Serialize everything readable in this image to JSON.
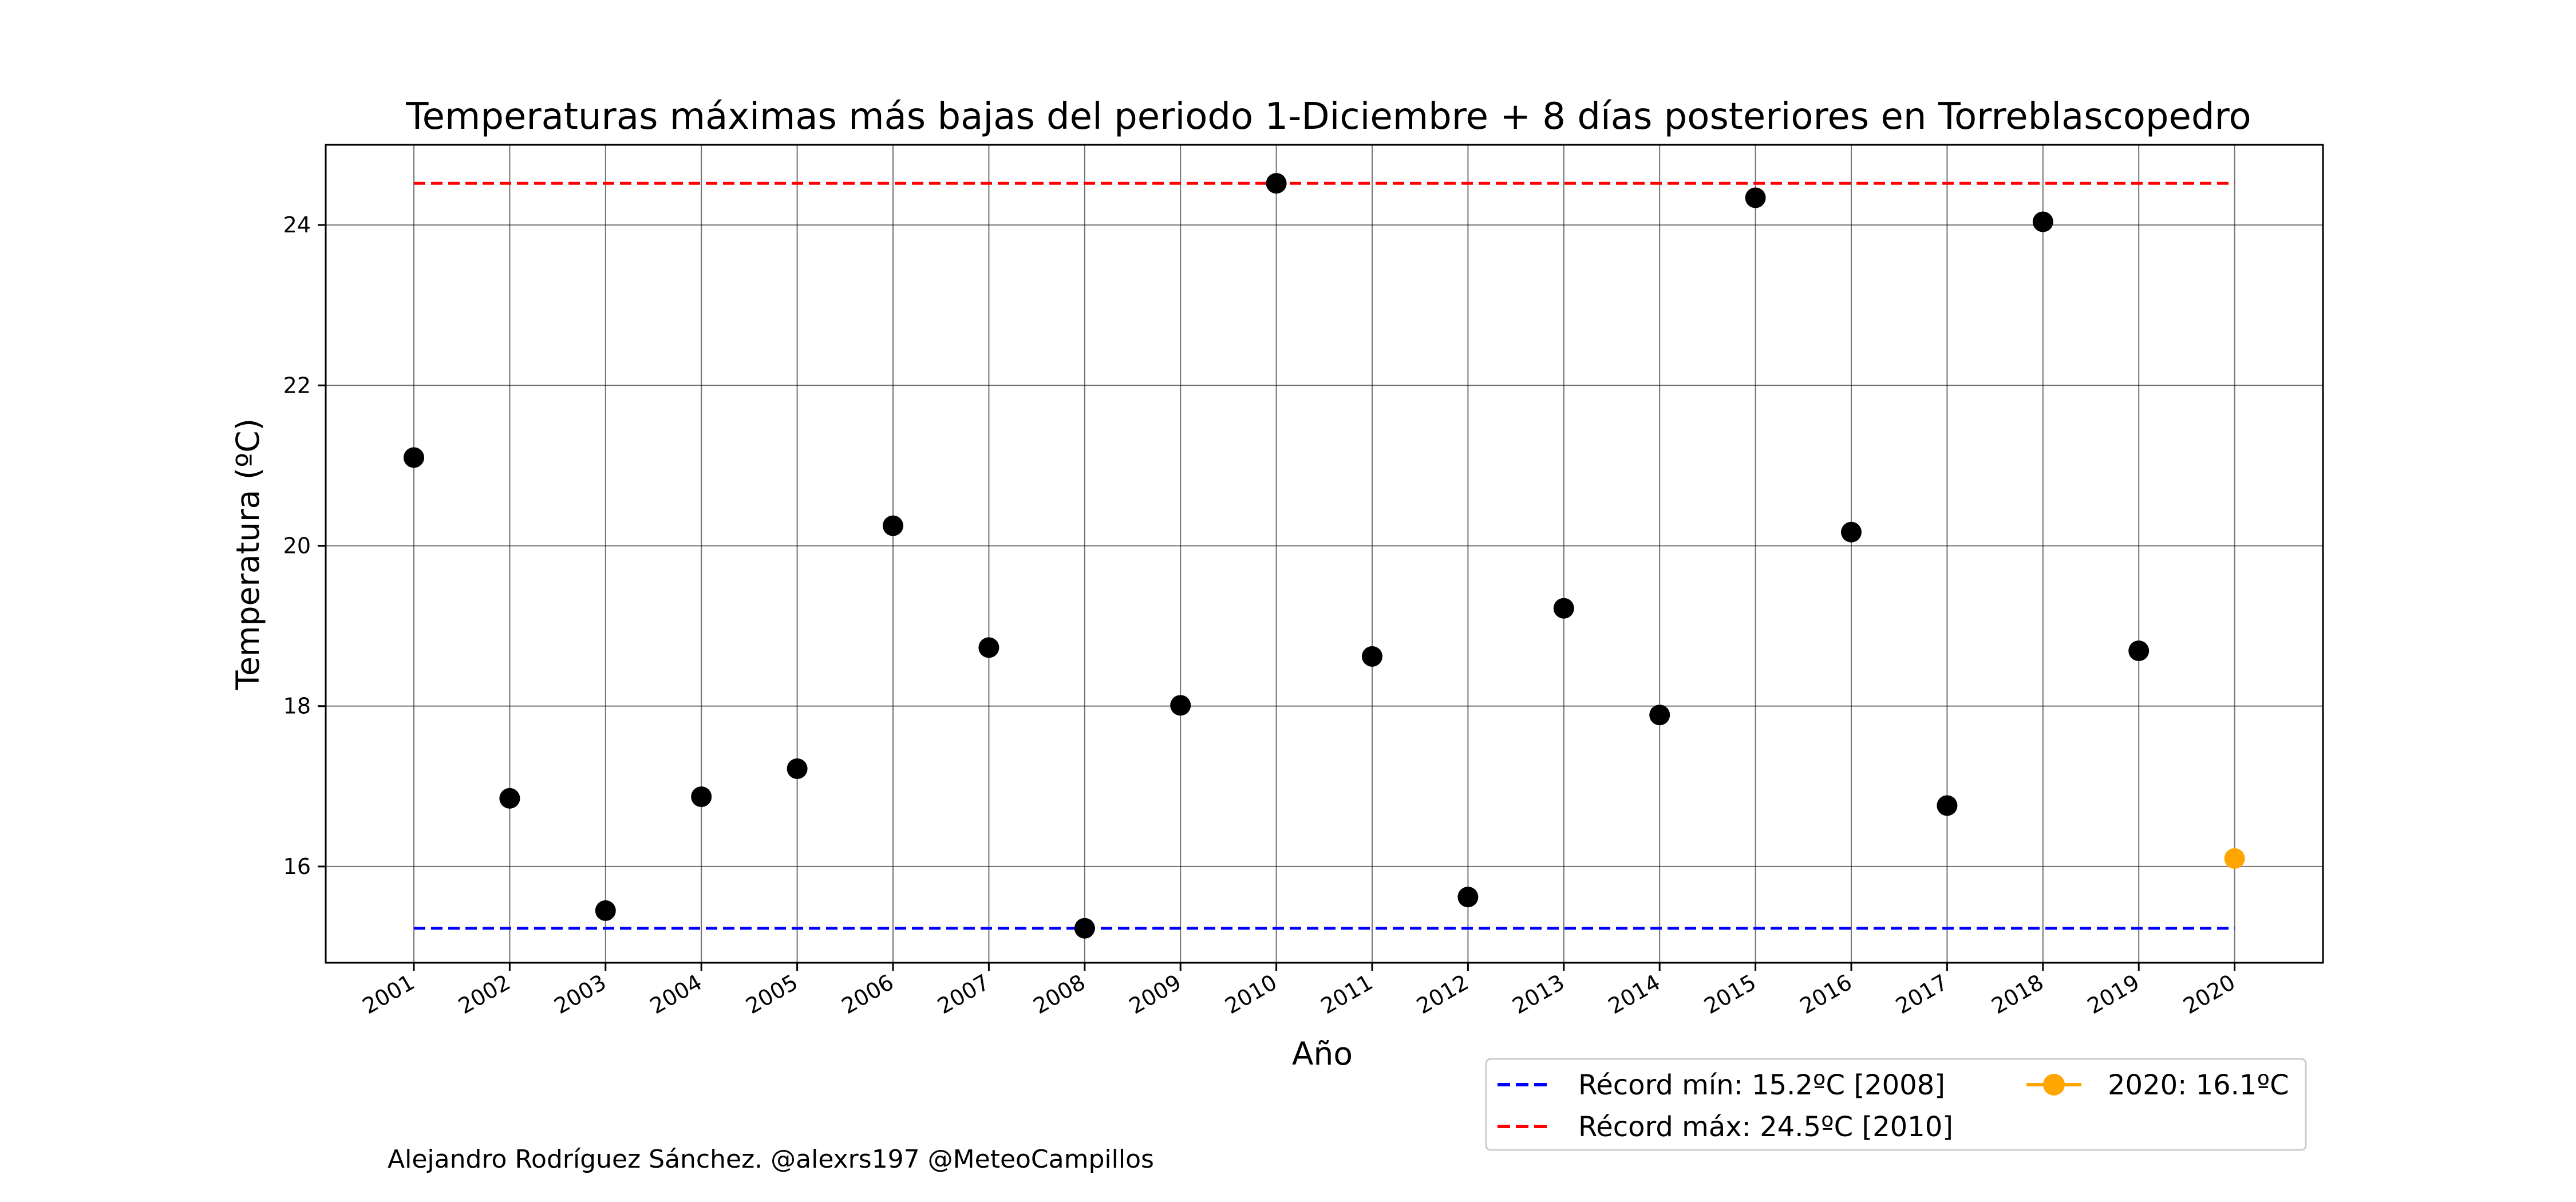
{
  "chart_data": {
    "type": "scatter",
    "title": "Temperaturas máximas más bajas del periodo 1-Diciembre + 8 días posteriores en Torreblascopedro",
    "xlabel": "Año",
    "ylabel": "Temperatura (ºC)",
    "ylim": [
      14.8,
      25.0
    ],
    "yticks": [
      16,
      18,
      20,
      22,
      24
    ],
    "grid": true,
    "x": [
      "2001",
      "2002",
      "2003",
      "2004",
      "2005",
      "2006",
      "2007",
      "2008",
      "2009",
      "2010",
      "2011",
      "2012",
      "2013",
      "2014",
      "2015",
      "2016",
      "2017",
      "2018",
      "2019",
      "2020"
    ],
    "series": [
      {
        "values": [
          21.1,
          16.85,
          15.45,
          16.87,
          17.22,
          20.25,
          18.73,
          15.23,
          18.01,
          24.52,
          18.62,
          15.62,
          19.22,
          17.89,
          24.34,
          20.17,
          16.76,
          24.04,
          18.69,
          null
        ],
        "color": "#000000",
        "marker": "circle"
      },
      {
        "name": "2020: 16.1ºC",
        "x": "2020",
        "values": [
          16.1
        ],
        "color": "#ffa500",
        "marker": "circle"
      }
    ],
    "reference_lines": [
      {
        "name": "Récord mín: 15.2ºC [2008]",
        "value": 15.23,
        "color": "#0000ff",
        "style": "dashed"
      },
      {
        "name": "Récord máx: 24.5ºC [2010]",
        "value": 24.52,
        "color": "#ff0000",
        "style": "dashed"
      }
    ],
    "legend_position": "bottom-right, below plot"
  },
  "credit": "Alejandro Rodríguez Sánchez. @alexrs197 @MeteoCampillos"
}
